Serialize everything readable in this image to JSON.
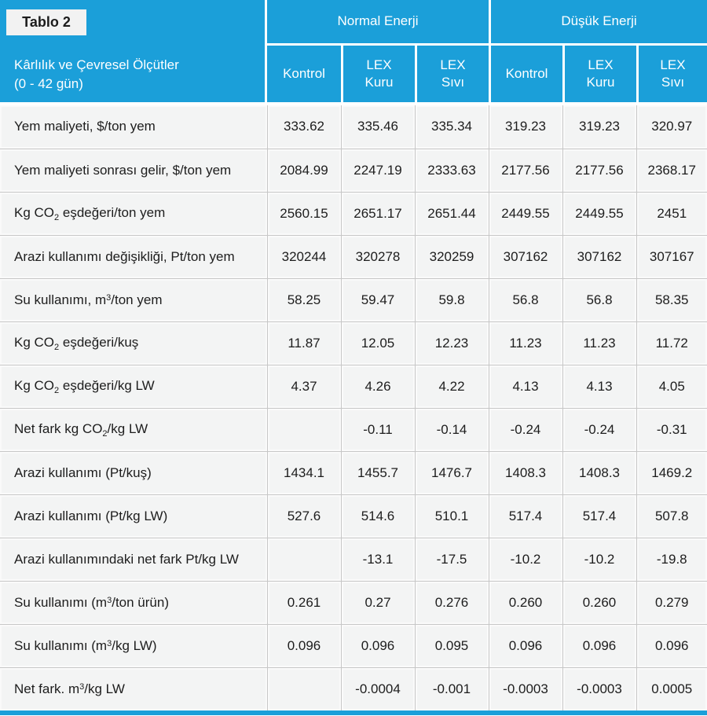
{
  "colors": {
    "accent": "#1b9fd9",
    "row_background": "#f3f4f4",
    "grid_line": "#c7c7c7",
    "header_text": "#ffffff",
    "body_text": "#1d1d1d",
    "tag_background": "#f2f2f2"
  },
  "table": {
    "tag": "Tablo 2",
    "row_header_title": "Kârlılık ve Çevresel Ölçütler",
    "row_header_subtitle": "(0 - 42 gün)",
    "groups": [
      {
        "label": "Normal Enerji"
      },
      {
        "label": "Düşük Enerji"
      }
    ],
    "sub_columns": [
      "Kontrol",
      "LEX\nKuru",
      "LEX\nSıvı",
      "Kontrol",
      "LEX\nKuru",
      "LEX\nSıvı"
    ],
    "rows": [
      {
        "label_parts": [
          {
            "text": "Yem maliyeti, $/ton yem"
          }
        ],
        "values": [
          "333.62",
          "335.46",
          "335.34",
          "319.23",
          "319.23",
          "320.97"
        ]
      },
      {
        "label_parts": [
          {
            "text": "Yem maliyeti sonrası gelir, $/ton yem"
          }
        ],
        "values": [
          "2084.99",
          "2247.19",
          "2333.63",
          "2177.56",
          "2177.56",
          "2368.17"
        ]
      },
      {
        "label_parts": [
          {
            "text": "Kg CO"
          },
          {
            "text": "2",
            "pos": "sub"
          },
          {
            "text": " eşdeğeri/ton yem"
          }
        ],
        "values": [
          "2560.15",
          "2651.17",
          "2651.44",
          "2449.55",
          "2449.55",
          "2451"
        ]
      },
      {
        "label_parts": [
          {
            "text": "Arazi kullanımı değişikliği, Pt/ton yem"
          }
        ],
        "values": [
          "320244",
          "320278",
          "320259",
          "307162",
          "307162",
          "307167"
        ]
      },
      {
        "label_parts": [
          {
            "text": "Su kullanımı, m"
          },
          {
            "text": "3",
            "pos": "sup"
          },
          {
            "text": "/ton yem"
          }
        ],
        "values": [
          "58.25",
          "59.47",
          "59.8",
          "56.8",
          "56.8",
          "58.35"
        ]
      },
      {
        "label_parts": [
          {
            "text": "Kg CO"
          },
          {
            "text": "2",
            "pos": "sub"
          },
          {
            "text": " eşdeğeri/kuş"
          }
        ],
        "values": [
          "11.87",
          "12.05",
          "12.23",
          "11.23",
          "11.23",
          "11.72"
        ]
      },
      {
        "label_parts": [
          {
            "text": "Kg CO"
          },
          {
            "text": "2",
            "pos": "sub"
          },
          {
            "text": " eşdeğeri/kg LW"
          }
        ],
        "values": [
          "4.37",
          "4.26",
          "4.22",
          "4.13",
          "4.13",
          "4.05"
        ]
      },
      {
        "label_parts": [
          {
            "text": "Net fark kg CO"
          },
          {
            "text": "2",
            "pos": "sub"
          },
          {
            "text": "/kg LW"
          }
        ],
        "values": [
          "",
          "-0.11",
          "-0.14",
          "-0.24",
          "-0.24",
          "-0.31"
        ]
      },
      {
        "label_parts": [
          {
            "text": "Arazi kullanımı (Pt/kuş)"
          }
        ],
        "values": [
          "1434.1",
          "1455.7",
          "1476.7",
          "1408.3",
          "1408.3",
          "1469.2"
        ]
      },
      {
        "label_parts": [
          {
            "text": "Arazi kullanımı (Pt/kg LW)"
          }
        ],
        "values": [
          "527.6",
          "514.6",
          "510.1",
          "517.4",
          "517.4",
          "507.8"
        ]
      },
      {
        "label_parts": [
          {
            "text": "Arazi kullanımındaki net fark Pt/kg LW"
          }
        ],
        "values": [
          "",
          "-13.1",
          "-17.5",
          "-10.2",
          "-10.2",
          "-19.8"
        ]
      },
      {
        "label_parts": [
          {
            "text": "Su kullanımı (m"
          },
          {
            "text": "3",
            "pos": "sup"
          },
          {
            "text": "/ton ürün)"
          }
        ],
        "values": [
          "0.261",
          "0.27",
          "0.276",
          "0.260",
          "0.260",
          "0.279"
        ]
      },
      {
        "label_parts": [
          {
            "text": "Su kullanımı (m"
          },
          {
            "text": "3",
            "pos": "sup"
          },
          {
            "text": "/kg LW)"
          }
        ],
        "values": [
          "0.096",
          "0.096",
          "0.095",
          "0.096",
          "0.096",
          "0.096"
        ]
      },
      {
        "label_parts": [
          {
            "text": "Net fark. m"
          },
          {
            "text": "3",
            "pos": "sup"
          },
          {
            "text": "/kg LW"
          }
        ],
        "values": [
          "",
          "-0.0004",
          "-0.001",
          "-0.0003",
          "-0.0003",
          "0.0005"
        ]
      }
    ]
  },
  "chart_data": {
    "type": "table",
    "title": "Tablo 2",
    "row_header": "Kârlılık ve Çevresel Ölçütler (0 - 42 gün)",
    "column_groups": [
      "Normal Enerji",
      "Düşük Enerji"
    ],
    "columns": [
      "Normal Enerji - Kontrol",
      "Normal Enerji - LEX Kuru",
      "Normal Enerji - LEX Sıvı",
      "Düşük Enerji - Kontrol",
      "Düşük Enerji - LEX Kuru",
      "Düşük Enerji - LEX Sıvı"
    ],
    "rows": [
      {
        "metric": "Yem maliyeti, $/ton yem",
        "values": [
          333.62,
          335.46,
          335.34,
          319.23,
          319.23,
          320.97
        ]
      },
      {
        "metric": "Yem maliyeti sonrası gelir, $/ton yem",
        "values": [
          2084.99,
          2247.19,
          2333.63,
          2177.56,
          2177.56,
          2368.17
        ]
      },
      {
        "metric": "Kg CO2 eşdeğeri/ton yem",
        "values": [
          2560.15,
          2651.17,
          2651.44,
          2449.55,
          2449.55,
          2451
        ]
      },
      {
        "metric": "Arazi kullanımı değişikliği, Pt/ton yem",
        "values": [
          320244,
          320278,
          320259,
          307162,
          307162,
          307167
        ]
      },
      {
        "metric": "Su kullanımı, m3/ton yem",
        "values": [
          58.25,
          59.47,
          59.8,
          56.8,
          56.8,
          58.35
        ]
      },
      {
        "metric": "Kg CO2 eşdeğeri/kuş",
        "values": [
          11.87,
          12.05,
          12.23,
          11.23,
          11.23,
          11.72
        ]
      },
      {
        "metric": "Kg CO2 eşdeğeri/kg LW",
        "values": [
          4.37,
          4.26,
          4.22,
          4.13,
          4.13,
          4.05
        ]
      },
      {
        "metric": "Net fark kg CO2/kg LW",
        "values": [
          null,
          -0.11,
          -0.14,
          -0.24,
          -0.24,
          -0.31
        ]
      },
      {
        "metric": "Arazi kullanımı (Pt/kuş)",
        "values": [
          1434.1,
          1455.7,
          1476.7,
          1408.3,
          1408.3,
          1469.2
        ]
      },
      {
        "metric": "Arazi kullanımı (Pt/kg LW)",
        "values": [
          527.6,
          514.6,
          510.1,
          517.4,
          517.4,
          507.8
        ]
      },
      {
        "metric": "Arazi kullanımındaki net fark Pt/kg LW",
        "values": [
          null,
          -13.1,
          -17.5,
          -10.2,
          -10.2,
          -19.8
        ]
      },
      {
        "metric": "Su kullanımı (m3/ton ürün)",
        "values": [
          0.261,
          0.27,
          0.276,
          0.26,
          0.26,
          0.279
        ]
      },
      {
        "metric": "Su kullanımı (m3/kg LW)",
        "values": [
          0.096,
          0.096,
          0.095,
          0.096,
          0.096,
          0.096
        ]
      },
      {
        "metric": "Net fark. m3/kg LW",
        "values": [
          null,
          -0.0004,
          -0.001,
          -0.0003,
          -0.0003,
          0.0005
        ]
      }
    ]
  }
}
